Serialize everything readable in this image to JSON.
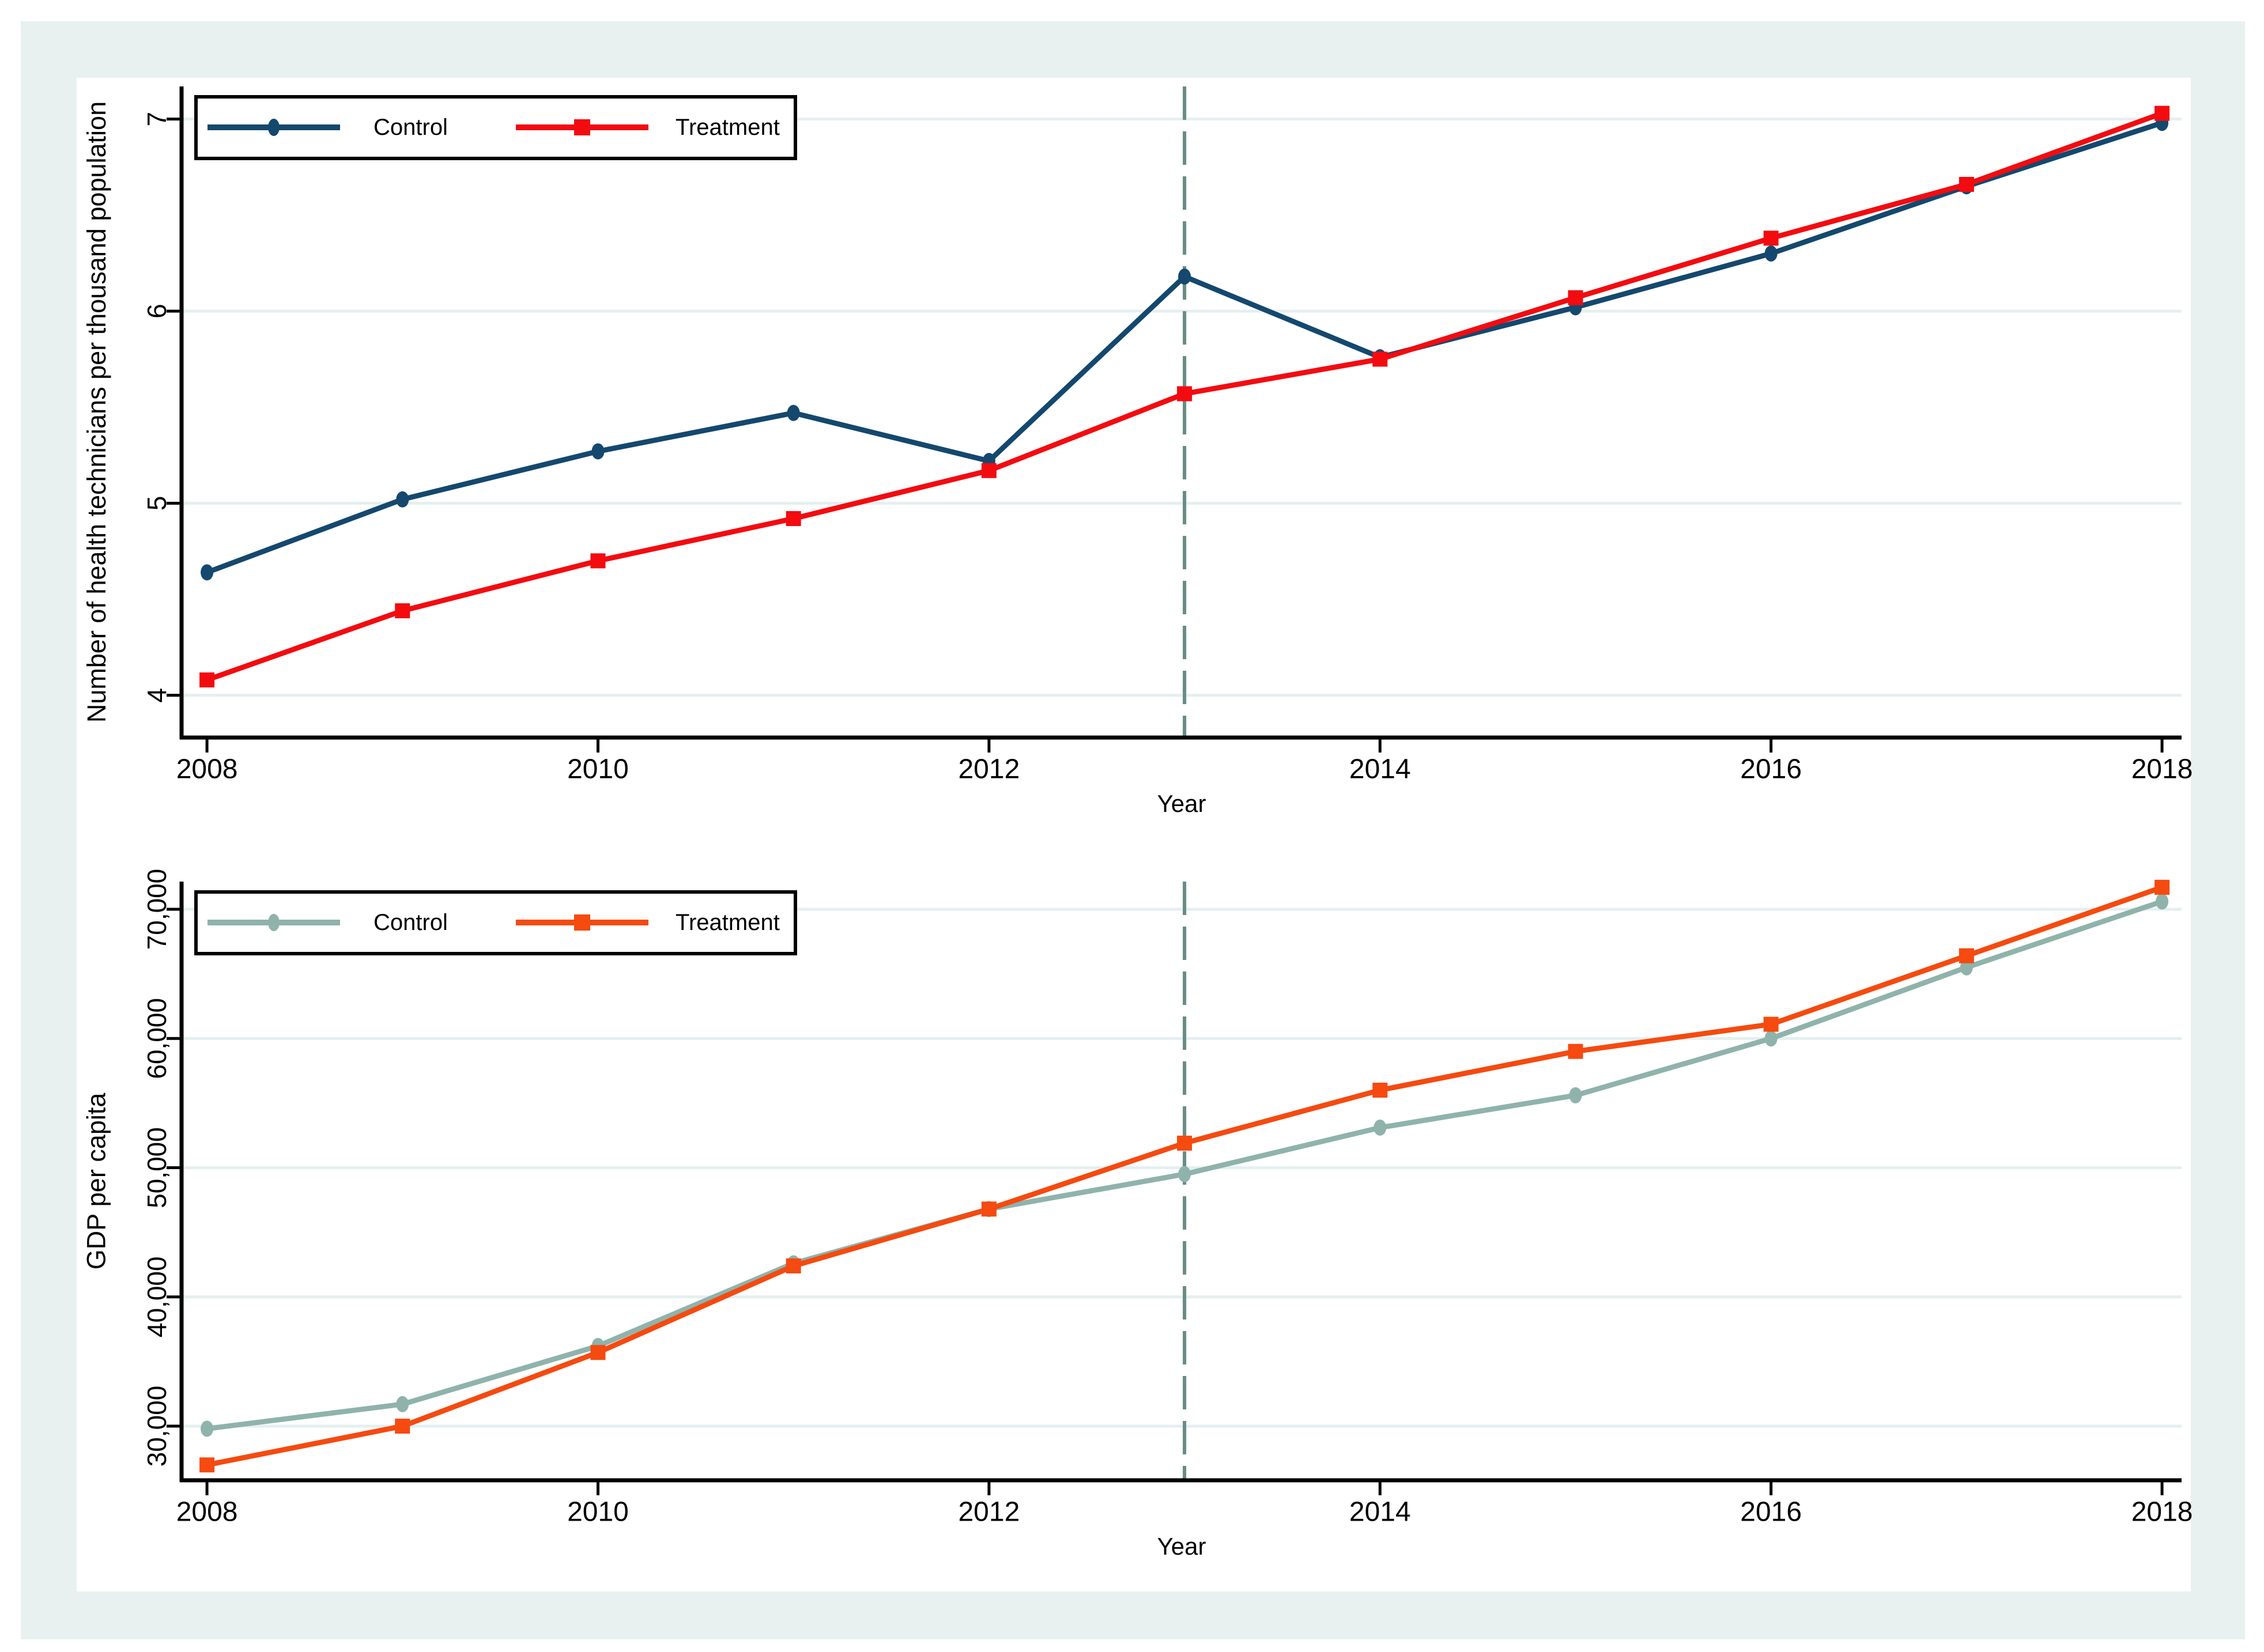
{
  "figure": {
    "background": "#ffffff",
    "frame_color": "#e8f1f0",
    "grid_color": "#e4eff0",
    "axis_color": "#000000",
    "vline_color": "#688b85",
    "legend_border_color": "#000000"
  },
  "chart_data": [
    {
      "type": "line",
      "title": "",
      "xlabel": "Year",
      "ylabel": "Number of health technicians per thousand population",
      "x": [
        2008,
        2009,
        2010,
        2011,
        2012,
        2013,
        2014,
        2015,
        2016,
        2017,
        2018
      ],
      "xticks": [
        2008,
        2010,
        2012,
        2014,
        2016,
        2018
      ],
      "yticks": [
        4,
        5,
        6,
        7
      ],
      "ytick_labels": [
        "4",
        "5",
        "6",
        "7"
      ],
      "xlim": [
        2007.87,
        2018.1
      ],
      "ylim": [
        3.78,
        7.17
      ],
      "grid": true,
      "vline_x": 2013,
      "legend_position": "top-left",
      "series": [
        {
          "name": "Control",
          "color": "#14486e",
          "marker": "circle",
          "values": [
            4.64,
            5.02,
            5.27,
            5.47,
            5.22,
            6.18,
            5.76,
            6.02,
            6.3,
            6.65,
            6.98
          ]
        },
        {
          "name": "Treatment",
          "color": "#f30b10",
          "marker": "square",
          "values": [
            4.08,
            4.44,
            4.7,
            4.92,
            5.17,
            5.57,
            5.75,
            6.07,
            6.38,
            6.66,
            7.03
          ]
        }
      ]
    },
    {
      "type": "line",
      "title": "",
      "xlabel": "Year",
      "ylabel": "GDP per capita",
      "x": [
        2008,
        2009,
        2010,
        2011,
        2012,
        2013,
        2014,
        2015,
        2016,
        2017,
        2018
      ],
      "xticks": [
        2008,
        2010,
        2012,
        2014,
        2016,
        2018
      ],
      "yticks": [
        30000,
        40000,
        50000,
        60000,
        70000
      ],
      "ytick_labels": [
        "30,000",
        "40,000",
        "50,000",
        "60,000",
        "70,000"
      ],
      "xlim": [
        2007.87,
        2018.1
      ],
      "ylim": [
        25810,
        72140
      ],
      "grid": true,
      "vline_x": 2013,
      "legend_position": "top-left",
      "series": [
        {
          "name": "Control",
          "color": "#8fb3ab",
          "marker": "circle",
          "values": [
            29800,
            31700,
            36200,
            42600,
            46800,
            49500,
            53100,
            55600,
            60000,
            65500,
            70600
          ]
        },
        {
          "name": "Treatment",
          "color": "#f54a10",
          "marker": "square",
          "values": [
            27000,
            30000,
            35700,
            42400,
            46800,
            51900,
            56000,
            59000,
            61100,
            66400,
            71700
          ]
        }
      ]
    }
  ]
}
